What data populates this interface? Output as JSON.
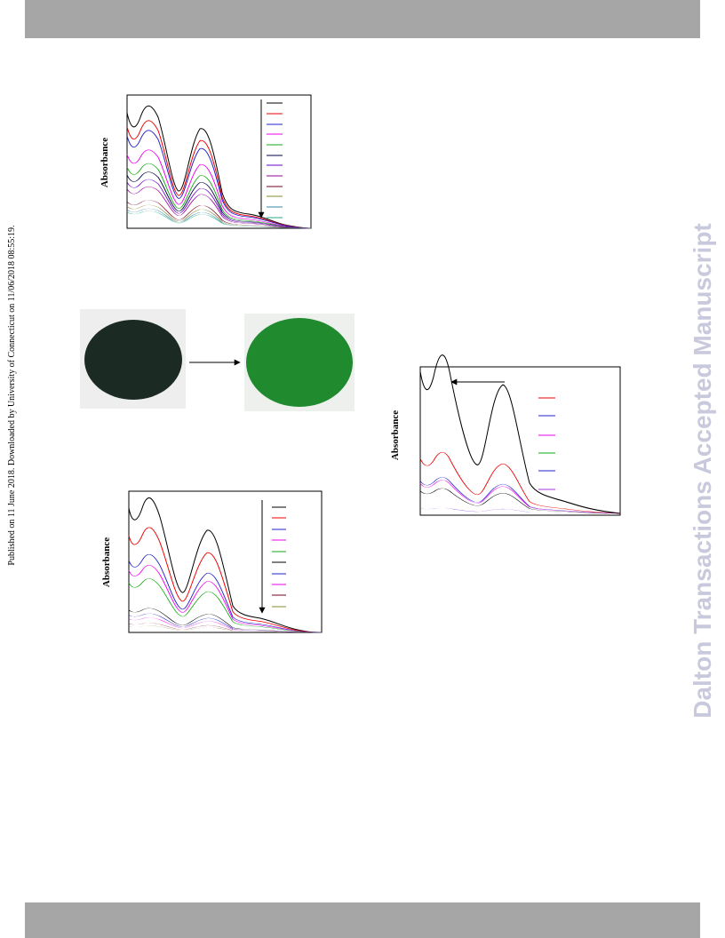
{
  "side_note": "Published on 11 June 2018. Downloaded by University of Connecticut on 11/06/2018 08:55:19.",
  "watermark": "Dalton Transactions Accepted Manuscript",
  "figures": [
    {
      "y_label": "Absorbance"
    },
    {
      "y_label": "Absorbance"
    },
    {
      "y_label": "Absorbance"
    }
  ]
}
